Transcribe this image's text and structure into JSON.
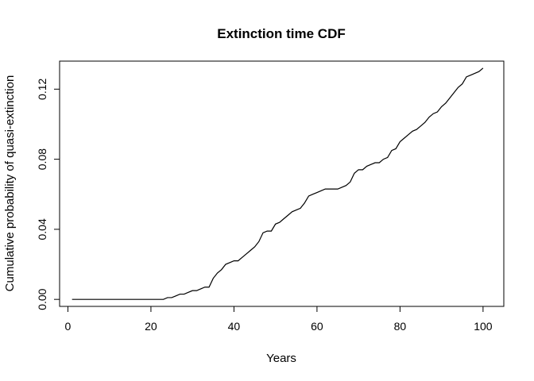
{
  "chart_data": {
    "type": "line",
    "title": "Extinction time CDF",
    "xlabel": "Years",
    "ylabel": "Cumulative probability of quasi-extinction",
    "xlim": [
      -2,
      105
    ],
    "ylim": [
      -0.004,
      0.136
    ],
    "x_ticks": [
      0,
      20,
      40,
      60,
      80,
      100
    ],
    "x_tick_labels": [
      "0",
      "20",
      "40",
      "60",
      "80",
      "100"
    ],
    "y_ticks": [
      0.0,
      0.04,
      0.08,
      0.12
    ],
    "y_tick_labels": [
      "0.00",
      "0.04",
      "0.08",
      "0.12"
    ],
    "grid": false,
    "legend": "none",
    "line_color": "#000000",
    "series": [
      {
        "x": [
          1,
          2,
          3,
          4,
          5,
          6,
          7,
          8,
          9,
          10,
          11,
          12,
          13,
          14,
          15,
          16,
          17,
          18,
          19,
          20,
          21,
          22,
          23,
          24,
          25,
          26,
          27,
          28,
          29,
          30,
          31,
          32,
          33,
          34,
          35,
          36,
          37,
          38,
          39,
          40,
          41,
          42,
          43,
          44,
          45,
          46,
          47,
          48,
          49,
          50,
          51,
          52,
          53,
          54,
          55,
          56,
          57,
          58,
          59,
          60,
          61,
          62,
          63,
          64,
          65,
          66,
          67,
          68,
          69,
          70,
          71,
          72,
          73,
          74,
          75,
          76,
          77,
          78,
          79,
          80,
          81,
          82,
          83,
          84,
          85,
          86,
          87,
          88,
          89,
          90,
          91,
          92,
          93,
          94,
          95,
          96,
          97,
          98,
          99,
          100
        ],
        "values": [
          0,
          0,
          0,
          0,
          0,
          0,
          0,
          0,
          0,
          0,
          0,
          0,
          0,
          0,
          0,
          0,
          0,
          0,
          0,
          0,
          0,
          0,
          0,
          0.001,
          0.001,
          0.002,
          0.003,
          0.003,
          0.004,
          0.005,
          0.005,
          0.006,
          0.007,
          0.007,
          0.012,
          0.015,
          0.017,
          0.02,
          0.021,
          0.022,
          0.022,
          0.024,
          0.026,
          0.028,
          0.03,
          0.033,
          0.038,
          0.039,
          0.039,
          0.043,
          0.044,
          0.046,
          0.048,
          0.05,
          0.051,
          0.052,
          0.055,
          0.059,
          0.06,
          0.061,
          0.062,
          0.063,
          0.063,
          0.063,
          0.063,
          0.064,
          0.065,
          0.067,
          0.072,
          0.074,
          0.074,
          0.076,
          0.077,
          0.078,
          0.078,
          0.08,
          0.081,
          0.085,
          0.086,
          0.09,
          0.092,
          0.094,
          0.096,
          0.097,
          0.099,
          0.101,
          0.104,
          0.106,
          0.107,
          0.11,
          0.112,
          0.115,
          0.118,
          0.121,
          0.123,
          0.127,
          0.128,
          0.129,
          0.13,
          0.132
        ]
      }
    ]
  }
}
